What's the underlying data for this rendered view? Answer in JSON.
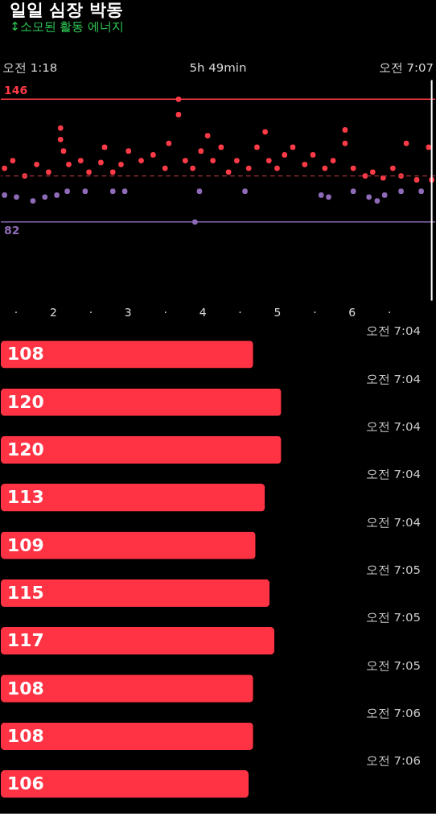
{
  "chart_data": [
    {
      "type": "scatter",
      "title": "일일 심장 박동",
      "subtitle": "↕소모된 활동 에너지",
      "annotations": [
        "오전 1:18",
        "5h 49min",
        "오전 7:07"
      ],
      "xlim": [
        1.3,
        7.117
      ],
      "xticks": [
        {
          "value": 1.5,
          "label": "·"
        },
        2,
        {
          "value": 2.5,
          "label": "·"
        },
        3,
        {
          "value": 3.5,
          "label": "·"
        },
        4,
        {
          "value": 4.5,
          "label": "·"
        },
        5,
        {
          "value": 5.5,
          "label": "·"
        },
        6,
        {
          "value": 6.5,
          "label": "·"
        }
      ],
      "ylim": [
        41,
        156
      ],
      "tick_labels": "x",
      "grid": false,
      "legend": false,
      "marker": "circle",
      "series": [
        {
          "color": "#ff3b47",
          "x": [
            1.35,
            1.46,
            1.62,
            1.78,
            1.94,
            2.1,
            2.1,
            2.14,
            2.21,
            2.37,
            2.48,
            2.64,
            2.69,
            2.8,
            2.91,
            3.01,
            3.18,
            3.34,
            3.5,
            3.55,
            3.68,
            3.68,
            3.77,
            3.87,
            3.98,
            4.07,
            4.14,
            4.25,
            4.35,
            4.46,
            4.62,
            4.73,
            4.84,
            4.89,
            5.0,
            5.1,
            5.21,
            5.37,
            5.48,
            5.64,
            5.75,
            5.91,
            5.91,
            6.02,
            6.18,
            6.28,
            6.42,
            6.55,
            6.66,
            6.73,
            6.87,
            7.03,
            7.07
          ],
          "values": [
            110,
            114,
            106,
            112,
            108,
            131,
            125,
            119,
            112,
            114,
            108,
            113,
            121,
            108,
            112,
            119,
            114,
            117,
            110,
            123,
            146,
            138,
            114,
            110,
            119,
            127,
            114,
            121,
            108,
            114,
            110,
            121,
            129,
            114,
            110,
            117,
            121,
            112,
            117,
            110,
            114,
            130,
            123,
            110,
            106,
            108,
            105,
            110,
            106,
            123,
            104,
            121,
            104
          ]
        },
        {
          "color": "#8e6bb8",
          "x": [
            1.35,
            1.51,
            1.73,
            1.89,
            2.05,
            2.19,
            2.43,
            2.8,
            2.96,
            3.9,
            3.96,
            4.57,
            5.59,
            5.69,
            6.02,
            6.23,
            6.34,
            6.44,
            6.66,
            6.93
          ],
          "values": [
            96,
            95,
            93,
            95,
            96,
            98,
            98,
            98,
            98,
            82,
            98,
            98,
            96,
            95,
            98,
            95,
            93,
            96,
            98,
            98
          ]
        }
      ],
      "ref_lines": [
        {
          "axis": "y",
          "value": 146,
          "label": "146",
          "color": "#ff3b47"
        },
        {
          "axis": "y",
          "value": 82,
          "label": "82",
          "color": "#8e6bb8"
        },
        {
          "axis": "y",
          "value": 106,
          "color": "#a0303a",
          "line_style": "dashed"
        },
        {
          "axis": "x",
          "value": 7.07,
          "color": "#ffffff"
        }
      ]
    },
    {
      "type": "bar",
      "orientation": "horizontal",
      "categories": [
        "오전 7:04",
        "오전 7:04",
        "오전 7:04",
        "오전 7:04",
        "오전 7:04",
        "오전 7:05",
        "오전 7:05",
        "오전 7:05",
        "오전 7:06",
        "오전 7:06"
      ],
      "values": [
        108,
        120,
        120,
        113,
        109,
        115,
        117,
        108,
        108,
        106
      ],
      "color": "#ff3344",
      "tick_labels": "y",
      "data_labels": true
    }
  ]
}
